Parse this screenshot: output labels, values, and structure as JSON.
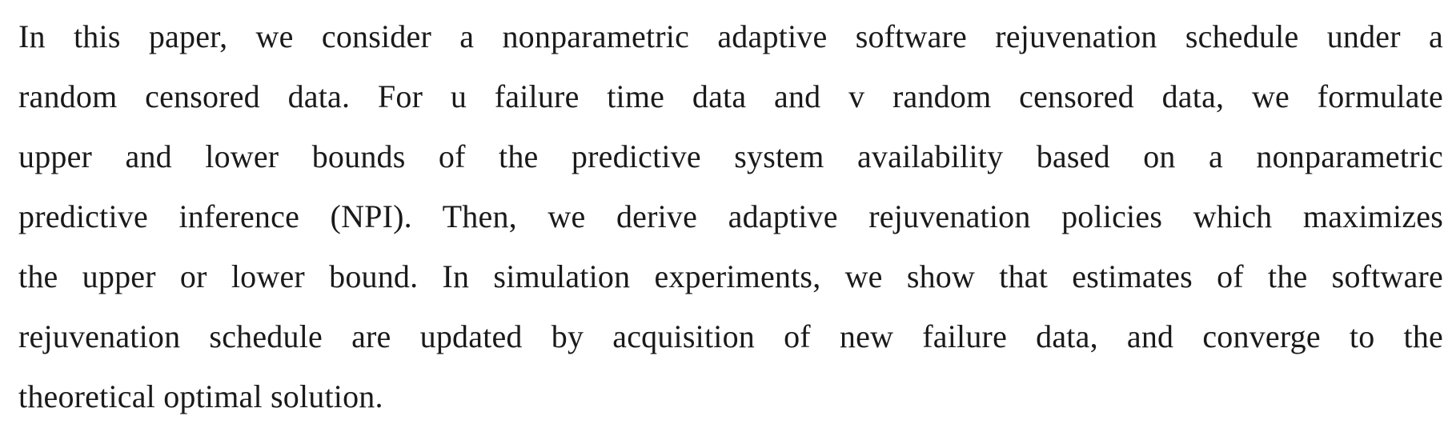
{
  "abstract": {
    "lines": [
      "In this paper, we consider a nonparametric adaptive software rejuvenation schedule under a",
      "random censored data. For u failure time data and v random censored data, we formulate",
      "upper and lower bounds of the predictive system availability based on a nonparametric",
      "predictive inference (NPI). Then, we derive adaptive rejuvenation policies which maximizes",
      "the upper or lower bound. In simulation experiments, we show that estimates of the software",
      "rejuvenation schedule are updated by acquisition of new failure data, and converge to the",
      "theoretical optimal solution."
    ]
  }
}
